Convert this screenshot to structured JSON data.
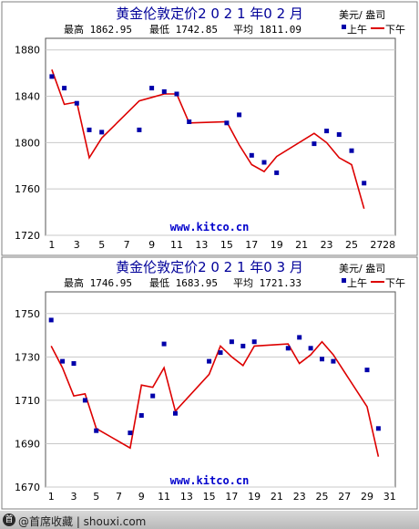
{
  "colors": {
    "high_point": "#0000aa",
    "low_line": "#dd0000",
    "title": "#000099",
    "grid": "#c8c8c8",
    "watermark": "#0000cc"
  },
  "legend": {
    "unit": "美元/ 盎司",
    "am": "上午",
    "pm": "下午"
  },
  "watermark": "www.kitco.cn",
  "footer": {
    "logo": "首",
    "text": "@首席收藏 | shouxi.com"
  },
  "chart_data": [
    {
      "type": "line",
      "title": "黄金伦敦定价2 0 2 1 年0 2 月",
      "stats": {
        "high": "最高 1862.95",
        "low": "最低 1742.85",
        "avg": "平均 1811.09"
      },
      "ylim": [
        1720,
        1890
      ],
      "yticks": [
        "1720",
        "1760",
        "1800",
        "1840",
        "1880"
      ],
      "xlim": [
        0.5,
        28.5
      ],
      "xticks": [
        "1",
        "3",
        "5",
        "7",
        "9",
        "11",
        "13",
        "15",
        "17",
        "19",
        "21",
        "23",
        "25",
        "27",
        "28"
      ],
      "series": [
        {
          "name": "上午",
          "mark": "square",
          "x": [
            1,
            2,
            3,
            4,
            5,
            8,
            9,
            10,
            11,
            12,
            15,
            16,
            17,
            18,
            19,
            22,
            23,
            24,
            25,
            26
          ],
          "values": [
            1857,
            1847,
            1834,
            1811,
            1809,
            1811,
            1847,
            1844,
            1842,
            1818,
            1817,
            1824,
            1789,
            1783,
            1774,
            1799,
            1810,
            1807,
            1793,
            1765
          ]
        },
        {
          "name": "下午",
          "mark": "line",
          "x": [
            1,
            2,
            3,
            4,
            5,
            8,
            9,
            10,
            11,
            12,
            15,
            16,
            17,
            18,
            19,
            22,
            23,
            24,
            25,
            26
          ],
          "values": [
            1863,
            1833,
            1835,
            1787,
            1804,
            1836,
            1839,
            1842,
            1842,
            1817,
            1818,
            1798,
            1781,
            1775,
            1788,
            1808,
            1800,
            1787,
            1781,
            1743
          ]
        }
      ]
    },
    {
      "type": "line",
      "title": "黄金伦敦定价2 0 2 1 年0 3 月",
      "stats": {
        "high": "最高 1746.95",
        "low": "最低 1683.95",
        "avg": "平均 1721.33"
      },
      "ylim": [
        1670,
        1760
      ],
      "yticks": [
        "1670",
        "1690",
        "1710",
        "1730",
        "1750"
      ],
      "xlim": [
        0.5,
        31.5
      ],
      "xticks": [
        "1",
        "3",
        "5",
        "7",
        "9",
        "11",
        "13",
        "15",
        "17",
        "19",
        "21",
        "23",
        "25",
        "27",
        "29",
        "31"
      ],
      "series": [
        {
          "name": "上午",
          "mark": "square",
          "x": [
            1,
            2,
            3,
            4,
            5,
            8,
            9,
            10,
            11,
            12,
            15,
            16,
            17,
            18,
            19,
            22,
            23,
            24,
            25,
            26,
            29,
            30
          ],
          "values": [
            1747,
            1728,
            1727,
            1710,
            1696,
            1695,
            1703,
            1712,
            1736,
            1704,
            1728,
            1732,
            1737,
            1735,
            1737,
            1734,
            1739,
            1734,
            1729,
            1728,
            1724,
            1697
          ]
        },
        {
          "name": "下午",
          "mark": "line",
          "x": [
            1,
            2,
            3,
            4,
            5,
            8,
            9,
            10,
            11,
            12,
            15,
            16,
            17,
            18,
            19,
            22,
            23,
            24,
            25,
            26,
            29,
            30
          ],
          "values": [
            1735,
            1725,
            1712,
            1713,
            1697,
            1688,
            1717,
            1716,
            1725,
            1705,
            1722,
            1735,
            1730,
            1726,
            1735,
            1736,
            1727,
            1731,
            1737,
            1731,
            1707,
            1684
          ]
        }
      ]
    }
  ]
}
